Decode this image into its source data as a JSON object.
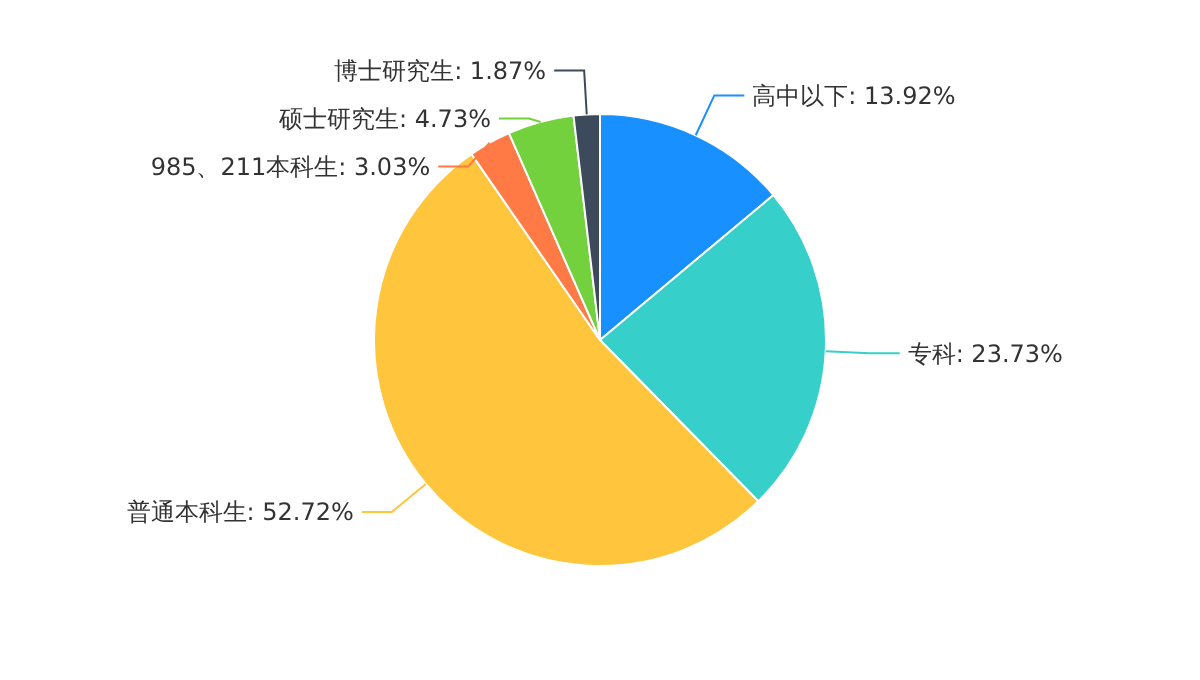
{
  "chart_data": {
    "type": "pie",
    "categories": [
      "高中以下",
      "专科",
      "普通本科生",
      "985、211本科生",
      "硕士研究生",
      "博士研究生"
    ],
    "values": [
      13.92,
      23.73,
      52.72,
      3.03,
      4.73,
      1.87
    ],
    "colors": [
      "#1890ff",
      "#36cfc9",
      "#ffc53d",
      "#ff7a45",
      "#73d13d",
      "#3d4a5c"
    ],
    "value_labels": [
      "13.92%",
      "23.73%",
      "52.72%",
      "3.03%",
      "4.73%",
      "1.87%"
    ]
  }
}
